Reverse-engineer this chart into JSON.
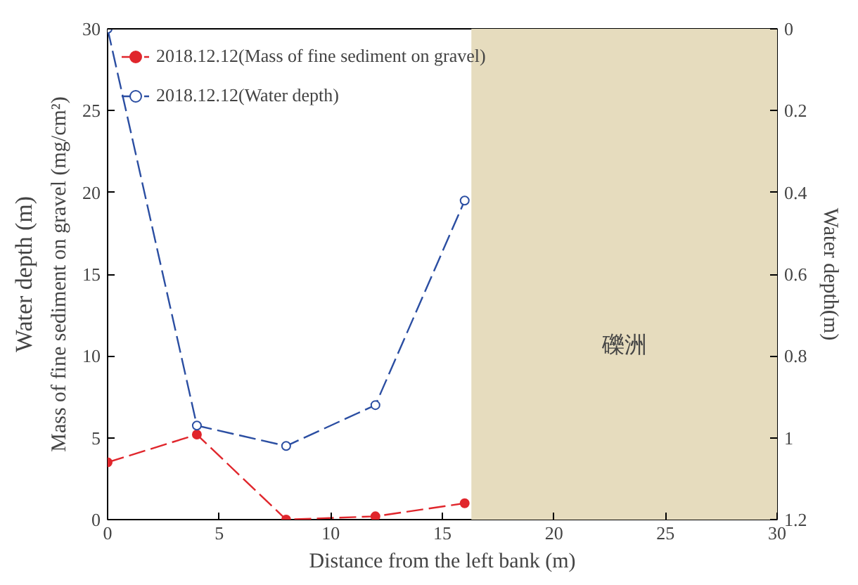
{
  "chart_data": {
    "type": "line",
    "xlabel": "Distance from the left bank (m)",
    "ylabel": "Mass of fine sediment on gravel (mg/cm²)",
    "y2label": "Water depth(m)",
    "annotations": [
      "Water depth (m)"
    ],
    "x": [
      0,
      4,
      8,
      12,
      16
    ],
    "series": [
      {
        "name": "2018.12.12(Mass of fine sediment on gravel)",
        "color": "#e0262c",
        "values": [
          3.5,
          5.2,
          0,
          0.2,
          1.0
        ]
      },
      {
        "name": "2018.12.12(Water depth)",
        "color": "#2b4ea2",
        "values": [
          0,
          0.97,
          1.02,
          0.92,
          0.42
        ],
        "axis": "y2"
      }
    ],
    "xlim": [
      0,
      30
    ],
    "xticks": [
      0,
      5,
      10,
      15,
      20,
      25,
      30
    ],
    "ylim": [
      0,
      30
    ],
    "yticks": [
      0,
      5,
      10,
      15,
      20,
      25,
      30
    ],
    "y2lim": [
      1.2,
      0
    ],
    "y2ticks": [
      0,
      0.2,
      0.4,
      0.6,
      0.8,
      1,
      1.2
    ],
    "bands": [
      {
        "axis": "x",
        "from": 16.3,
        "to": 30,
        "label": "礫洲",
        "color": "#e6dcbe"
      }
    ],
    "marker": "circle",
    "line_style": "dashed",
    "legend": "top left",
    "grid": false
  }
}
